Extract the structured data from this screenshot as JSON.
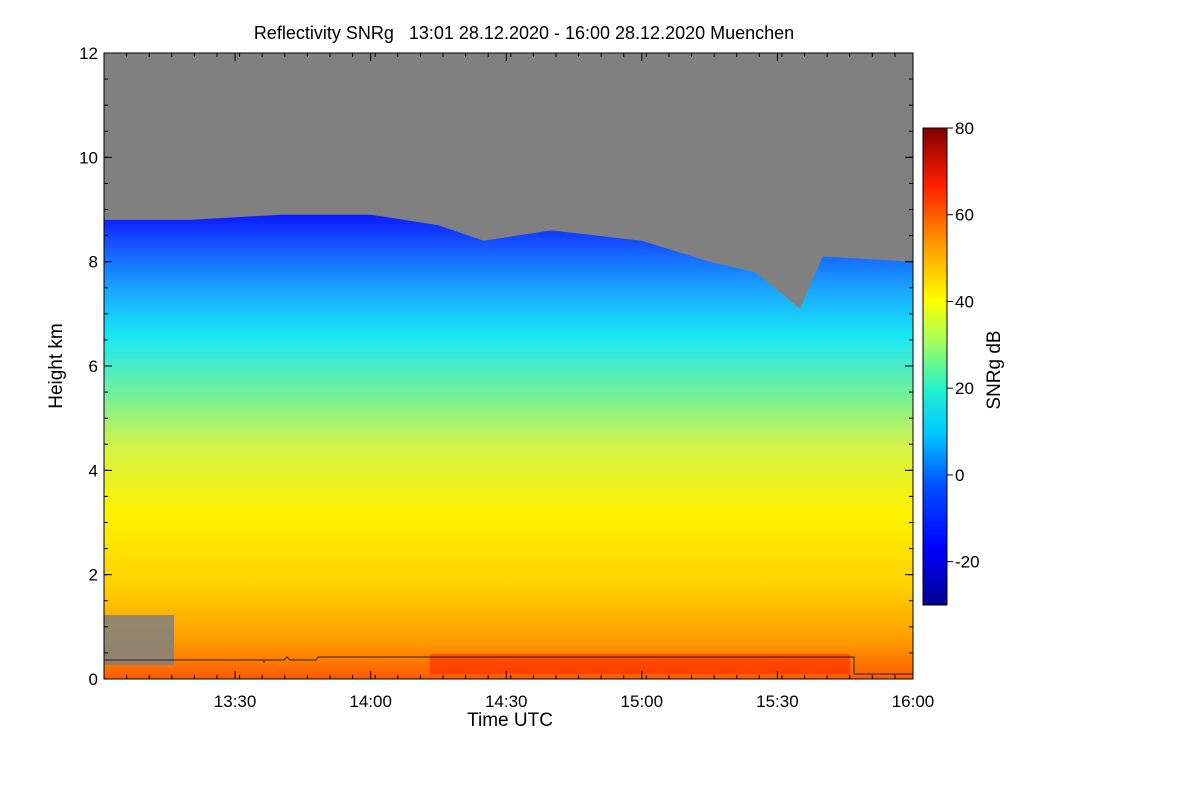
{
  "chart_data": {
    "type": "heatmap",
    "title": "Reflectivity SNRg   13:01 28.12.2020 - 16:00 28.12.2020 Muenchen",
    "xlabel": "Time UTC",
    "ylabel": "Height km",
    "colorbar_label": "SNRg dB",
    "x_range": [
      "13:01",
      "16:00"
    ],
    "x_ticks": [
      "13:30",
      "14:00",
      "14:30",
      "15:00",
      "15:30",
      "16:00"
    ],
    "ylim": [
      0,
      12
    ],
    "y_ticks": [
      "0",
      "2",
      "4",
      "6",
      "8",
      "10",
      "12"
    ],
    "colorbar_range": [
      -30,
      80
    ],
    "colorbar_ticks": [
      "-20",
      "0",
      "20",
      "40",
      "60",
      "80"
    ],
    "missing_color": "#808080",
    "colormap": [
      "#00008f",
      "#0000ff",
      "#0080ff",
      "#00ffff",
      "#80ff80",
      "#ffff00",
      "#ff8000",
      "#ff0000",
      "#800000"
    ],
    "cloud_top_km": [
      {
        "time": "13:01",
        "height": 8.8
      },
      {
        "time": "13:20",
        "height": 8.8
      },
      {
        "time": "13:40",
        "height": 8.9
      },
      {
        "time": "14:00",
        "height": 8.9
      },
      {
        "time": "14:15",
        "height": 8.7
      },
      {
        "time": "14:25",
        "height": 8.4
      },
      {
        "time": "14:40",
        "height": 8.6
      },
      {
        "time": "15:00",
        "height": 8.4
      },
      {
        "time": "15:15",
        "height": 8.0
      },
      {
        "time": "15:25",
        "height": 7.8
      },
      {
        "time": "15:35",
        "height": 7.1
      },
      {
        "time": "15:40",
        "height": 8.1
      },
      {
        "time": "16:00",
        "height": 8.0
      }
    ],
    "snr_profile_db": [
      {
        "height": 0.0,
        "snr": 60
      },
      {
        "height": 1.0,
        "snr": 52
      },
      {
        "height": 2.0,
        "snr": 46
      },
      {
        "height": 3.0,
        "snr": 40
      },
      {
        "height": 4.0,
        "snr": 36
      },
      {
        "height": 5.0,
        "snr": 27
      },
      {
        "height": 6.0,
        "snr": 14
      },
      {
        "height": 7.0,
        "snr": 3
      },
      {
        "height": 8.0,
        "snr": -12
      },
      {
        "height": 8.8,
        "snr": -18
      }
    ]
  }
}
